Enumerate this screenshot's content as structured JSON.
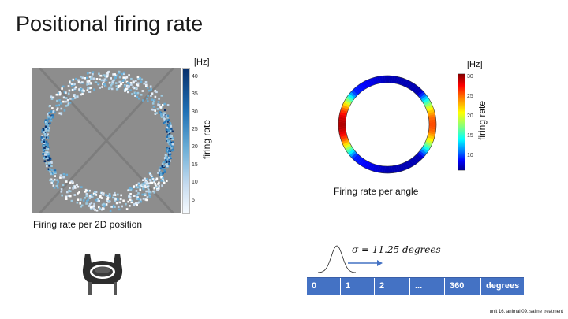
{
  "title": "Positional firing rate",
  "panel_2d": {
    "caption": "Firing rate per 2D position",
    "colorbar": {
      "unit": "[Hz]",
      "label": "firing rate",
      "ticks": [
        "40",
        "35",
        "30",
        "25",
        "20",
        "15",
        "10",
        "5"
      ],
      "range": [
        1,
        42
      ],
      "colors": [
        "#eef3fa",
        "#08306b"
      ]
    }
  },
  "panel_angle": {
    "caption": "Firing rate per angle",
    "colorbar": {
      "unit": "[Hz]",
      "label": "firing rate",
      "ticks": [
        "30",
        "25",
        "20",
        "15",
        "10"
      ],
      "range": [
        9,
        30
      ],
      "colormap": "jet"
    }
  },
  "sigma": {
    "formula": "σ = 11.25 degrees"
  },
  "bins": [
    "0",
    "1",
    "2",
    "...",
    "360",
    "degrees"
  ],
  "footnote": "unit 16, animal 09, saline treatment",
  "colors": {
    "table_fill": "#4472c4",
    "arrow": "#4472c4",
    "arena_gray": "#8a8a8a"
  }
}
